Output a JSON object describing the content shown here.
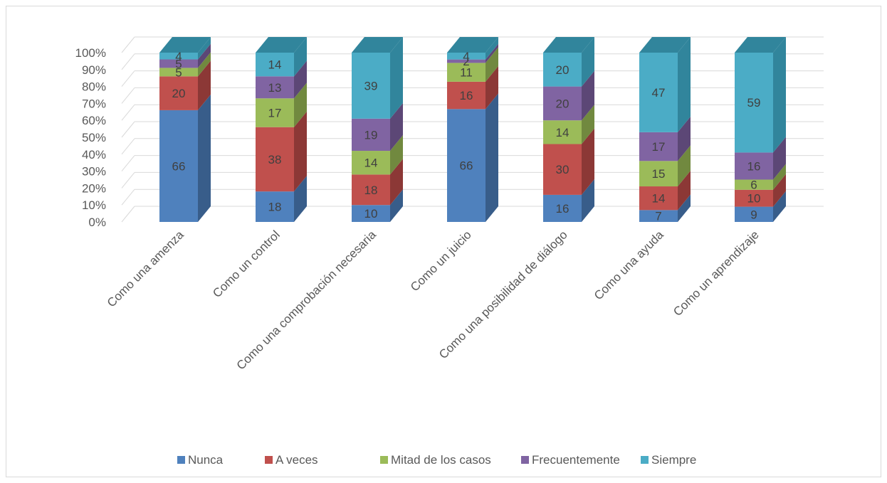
{
  "chart_data": {
    "type": "bar",
    "stacked": true,
    "percent": true,
    "three_d": true,
    "categories": [
      "Como una amenza",
      "Como un control",
      "Como una comprobación necesaria",
      "Como un juicio",
      "Como una posibilidad de diálogo",
      "Como una ayuda",
      "Como un aprendizaje"
    ],
    "series": [
      {
        "name": "Nunca",
        "color": "#4F81BD",
        "side_color": "#385D8A",
        "values": [
          66,
          18,
          10,
          66,
          16,
          7,
          9
        ]
      },
      {
        "name": "A veces",
        "color": "#C0504D",
        "side_color": "#8C3836",
        "values": [
          20,
          38,
          18,
          16,
          30,
          14,
          10
        ]
      },
      {
        "name": "Mitad de los casos",
        "color": "#9BBB59",
        "side_color": "#71893F",
        "values": [
          5,
          17,
          14,
          11,
          14,
          15,
          6
        ]
      },
      {
        "name": "Frecuentemente",
        "color": "#8064A2",
        "side_color": "#5C4776",
        "values": [
          5,
          13,
          19,
          2,
          20,
          17,
          16
        ]
      },
      {
        "name": "Siempre",
        "color": "#4BACC6",
        "side_color": "#31859C",
        "values": [
          4,
          14,
          39,
          4,
          20,
          47,
          59
        ]
      }
    ],
    "y_ticks": [
      "0%",
      "10%",
      "20%",
      "30%",
      "40%",
      "50%",
      "60%",
      "70%",
      "80%",
      "90%",
      "100%"
    ],
    "ylim": [
      0,
      100
    ],
    "grid": true,
    "legend_position": "bottom"
  }
}
